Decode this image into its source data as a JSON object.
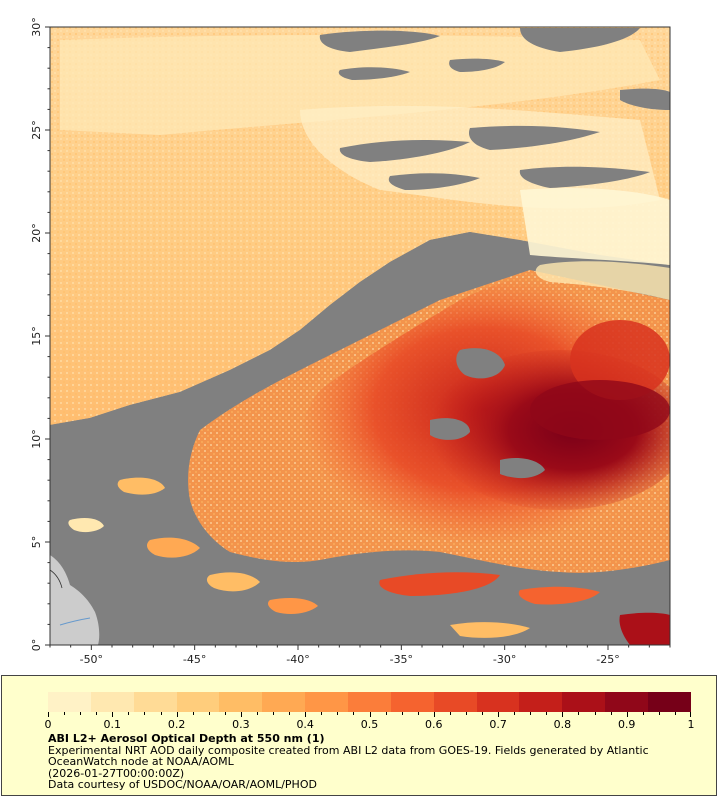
{
  "map": {
    "lon_range": [
      -52,
      -22
    ],
    "lat_range": [
      0,
      30
    ],
    "x_ticks": [
      {
        "value": -50,
        "label": "-50°"
      },
      {
        "value": -45,
        "label": "-45°"
      },
      {
        "value": -40,
        "label": "-40°"
      },
      {
        "value": -35,
        "label": "-35°"
      },
      {
        "value": -30,
        "label": "-30°"
      },
      {
        "value": -25,
        "label": "-25°"
      }
    ],
    "y_ticks": [
      {
        "value": 0,
        "label": "0°"
      },
      {
        "value": 5,
        "label": "5°"
      },
      {
        "value": 10,
        "label": "10°"
      },
      {
        "value": 15,
        "label": "15°"
      },
      {
        "value": 20,
        "label": "20°"
      },
      {
        "value": 25,
        "label": "25°"
      },
      {
        "value": 30,
        "label": "30°"
      }
    ],
    "colors": {
      "no_data": "#808080",
      "land": "#cccccc",
      "coastline": "#6699cc"
    }
  },
  "legend": {
    "colorbar": {
      "min": 0,
      "max": 1,
      "colors": [
        "#fff2c6",
        "#ffe8b0",
        "#ffdb96",
        "#ffcd7c",
        "#ffbd65",
        "#ffa953",
        "#ff9646",
        "#fb7d3a",
        "#f5632f",
        "#e84a26",
        "#d8321f",
        "#c41f1a",
        "#ab1018",
        "#900719",
        "#760018"
      ],
      "ticks": [
        {
          "value": 0,
          "label": "0"
        },
        {
          "value": 0.1,
          "label": "0.1"
        },
        {
          "value": 0.2,
          "label": "0.2"
        },
        {
          "value": 0.3,
          "label": "0.3"
        },
        {
          "value": 0.4,
          "label": "0.4"
        },
        {
          "value": 0.5,
          "label": "0.5"
        },
        {
          "value": 0.6,
          "label": "0.6"
        },
        {
          "value": 0.7,
          "label": "0.7"
        },
        {
          "value": 0.8,
          "label": "0.8"
        },
        {
          "value": 0.9,
          "label": "0.9"
        },
        {
          "value": 1,
          "label": "1"
        }
      ]
    },
    "title": "ABI L2+ Aerosol Optical Depth at 550 nm (1)",
    "description": "Experimental NRT AOD daily composite created from ABI L2 data from GOES-19. Fields generated by Atlantic OceanWatch node at NOAA/AOML",
    "timestamp": "(2026-01-27T00:00:00Z)",
    "credit": "Data courtesy of USDOC/NOAA/OAR/AOML/PHOD"
  }
}
